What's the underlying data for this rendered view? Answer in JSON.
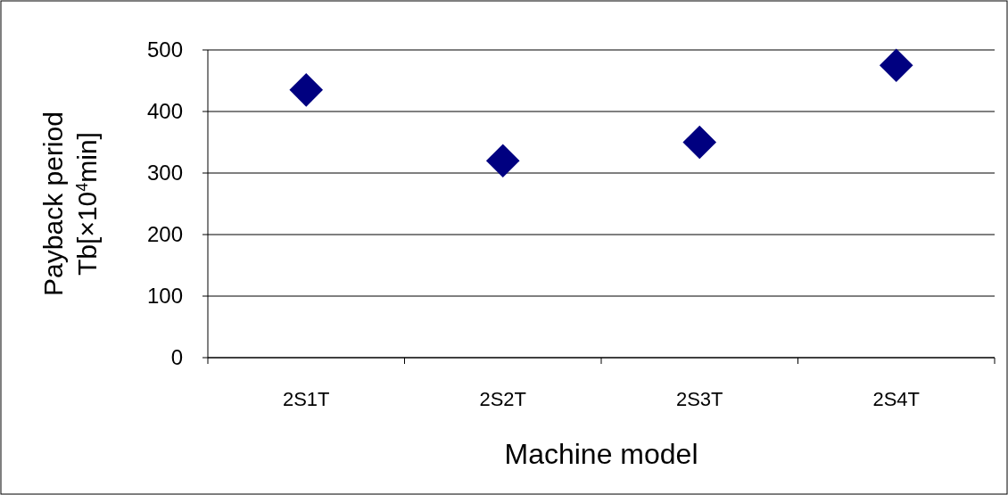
{
  "chart_data": {
    "type": "scatter",
    "xlabel": "Machine model",
    "ylabel": "Payback period\nTb[×10$^{4}$min]",
    "categories": [
      "2S1T",
      "2S2T",
      "2S3T",
      "2S4T"
    ],
    "series": [
      {
        "color": "#000080",
        "values": [
          435,
          320,
          350,
          475
        ]
      }
    ],
    "ylim": [
      0,
      500
    ],
    "yticks": [
      0,
      100,
      200,
      300,
      400,
      500
    ],
    "grid": "y",
    "marker": "diamond"
  }
}
